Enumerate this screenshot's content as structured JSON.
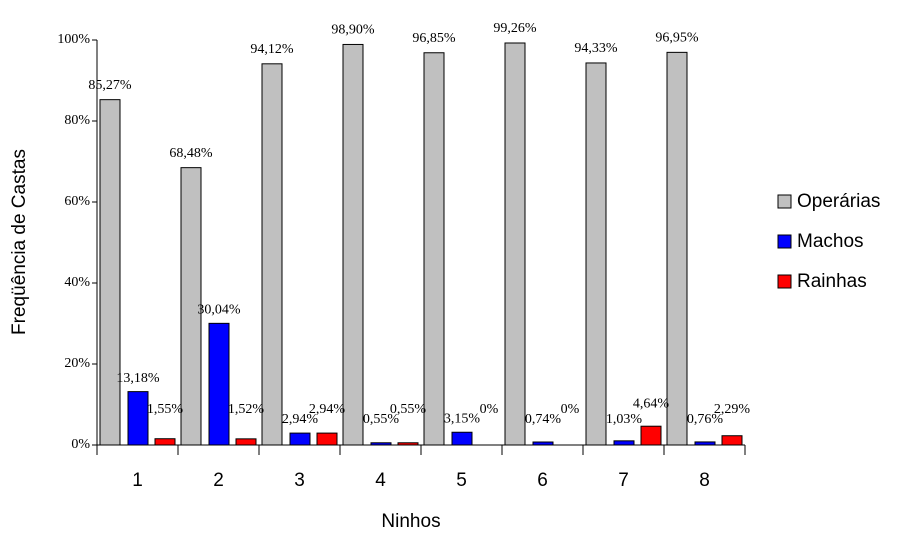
{
  "chart_data": {
    "type": "bar",
    "x_label": "Ninhos",
    "y_label": "Freqüência de Castas",
    "categories": [
      "1",
      "2",
      "3",
      "4",
      "5",
      "6",
      "7",
      "8"
    ],
    "series": [
      {
        "name": "Operárias",
        "color": "#c0c0c0",
        "values": [
          85.27,
          68.48,
          94.12,
          98.9,
          96.85,
          99.26,
          94.33,
          96.95
        ],
        "value_labels": [
          "85,27%",
          "68,48%",
          "94,12%",
          "98,90%",
          "96,85%",
          "99,26%",
          "94,33%",
          "96,95%"
        ]
      },
      {
        "name": "Machos",
        "color": "#0000ff",
        "values": [
          13.18,
          30.04,
          2.94,
          0.55,
          3.15,
          0.74,
          1.03,
          0.76
        ],
        "value_labels": [
          "13,18%",
          "30,04%",
          "2,94%",
          "0,55%",
          "3,15%",
          "0,74%",
          "1,03%",
          "0,76%"
        ]
      },
      {
        "name": "Rainhas",
        "color": "#ff0000",
        "values": [
          1.55,
          1.52,
          2.94,
          0.55,
          0,
          0,
          4.64,
          2.29
        ],
        "value_labels": [
          "1,55%",
          "1,52%",
          "2,94%",
          "0,55%",
          "0%",
          "0%",
          "4,64%",
          "2,29%"
        ]
      }
    ],
    "ylim": [
      0,
      100
    ],
    "yticks": [
      {
        "value": 0,
        "label": "0%"
      },
      {
        "value": 20,
        "label": "20%"
      },
      {
        "value": 40,
        "label": "40%"
      },
      {
        "value": 60,
        "label": "60%"
      },
      {
        "value": 80,
        "label": "80%"
      },
      {
        "value": 100,
        "label": "100%"
      }
    ],
    "grid": false,
    "legend": "right"
  }
}
